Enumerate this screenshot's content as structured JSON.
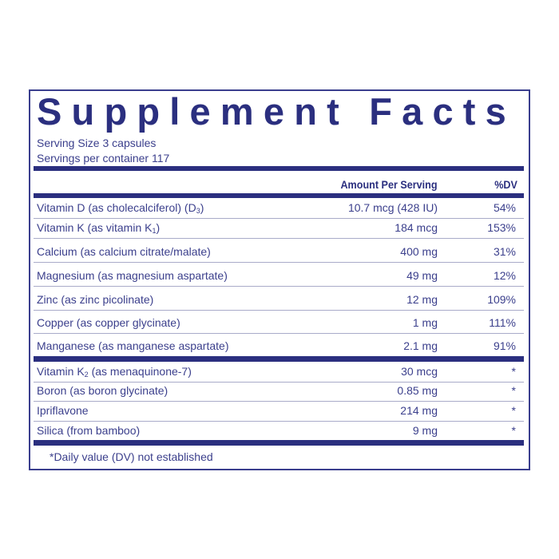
{
  "title": "Supplement Facts",
  "serving_size": "Serving Size  3  capsules",
  "servings_per_container": "Servings per container  117",
  "header": {
    "amount": "Amount Per Serving",
    "dv": "%DV"
  },
  "rows_dv": [
    {
      "name": "Vitamin D (as cholecalciferol) (D",
      "sub": "3",
      "tail": ")",
      "amount": "10.7 mcg (428 IU)",
      "dv": "54%"
    },
    {
      "name": "Vitamin K (as vitamin K",
      "sub": "1",
      "tail": ")",
      "amount": "184 mcg",
      "dv": "153%"
    },
    {
      "name": "Calcium (as calcium citrate/malate)",
      "amount": "400 mg",
      "dv": "31%"
    },
    {
      "name": "Magnesium (as magnesium aspartate)",
      "amount": "49 mg",
      "dv": "12%"
    },
    {
      "name": "Zinc (as zinc picolinate)",
      "amount": "12 mg",
      "dv": "109%"
    },
    {
      "name": "Copper (as copper glycinate)",
      "amount": "1 mg",
      "dv": "111%"
    },
    {
      "name": "Manganese (as manganese aspartate)",
      "amount": "2.1 mg",
      "dv": "91%"
    }
  ],
  "rows_nodv": [
    {
      "name": "Vitamin K",
      "sub": "2",
      "tail": " (as menaquinone-7)",
      "amount": "30 mcg",
      "dv": "*"
    },
    {
      "name": "Boron (as boron glycinate)",
      "amount": "0.85 mg",
      "dv": "*"
    },
    {
      "name": "Ipriflavone",
      "amount": "214 mg",
      "dv": "*"
    },
    {
      "name": "Silica (from bamboo)",
      "amount": "9 mg",
      "dv": "*"
    }
  ],
  "footnote": "*Daily value (DV) not established",
  "colors": {
    "navy": "#2b2f7f",
    "text": "#3b3f8c",
    "rule": "#a9abc9"
  }
}
